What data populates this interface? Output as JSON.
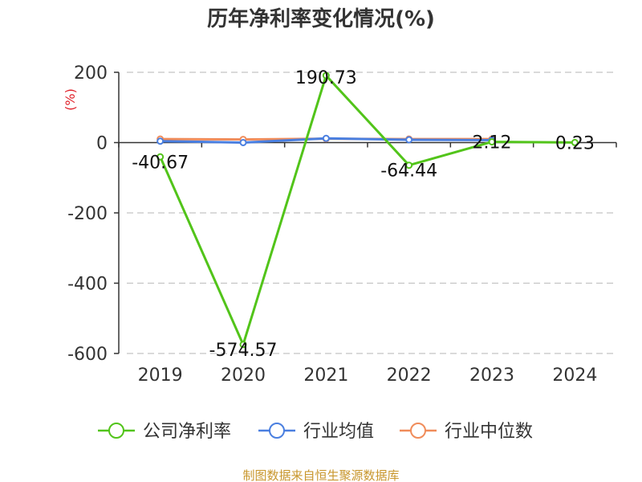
{
  "chart_data": {
    "type": "line",
    "title": "历年净利率变化情况(%)",
    "ylabel": "(%)",
    "categories": [
      "2019",
      "2020",
      "2021",
      "2022",
      "2023",
      "2024"
    ],
    "ylim": [
      -600,
      200
    ],
    "yticks": [
      200,
      0,
      -200,
      -400,
      -600
    ],
    "grid": true,
    "legend_position": "bottom",
    "series": [
      {
        "name": "公司净利率",
        "color": "#52c41a",
        "values": [
          -40.67,
          -574.57,
          190.73,
          -64.44,
          2.12,
          0.23
        ],
        "labels": [
          "-40.67",
          "-574.57",
          "190.73",
          "-64.44",
          "2.12",
          "0.23"
        ]
      },
      {
        "name": "行业均值",
        "color": "#4a7fe0",
        "values": [
          4,
          0,
          12,
          8,
          7,
          null
        ]
      },
      {
        "name": "行业中位数",
        "color": "#f08c5a",
        "values": [
          10,
          9,
          11,
          10,
          10,
          null
        ]
      }
    ]
  },
  "footer": {
    "source": "制图数据来自恒生聚源数据库"
  }
}
